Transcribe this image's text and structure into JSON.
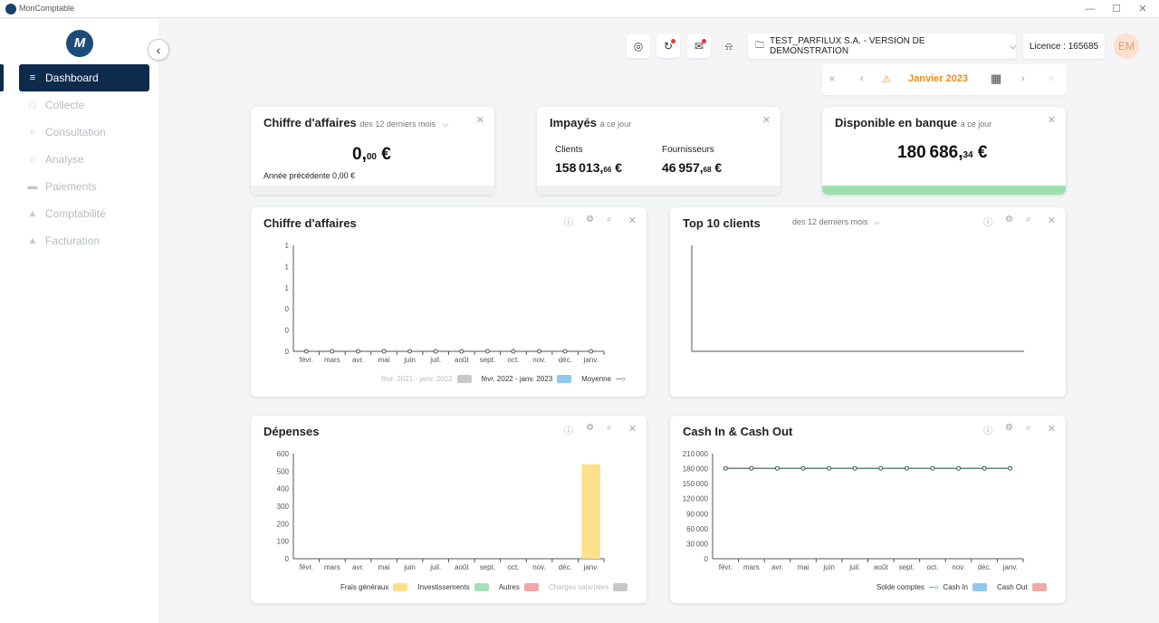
{
  "window": {
    "title": "MonComptable",
    "controls": [
      "—",
      "☐",
      "✕"
    ]
  },
  "sidebar": {
    "logo": "M",
    "collapse_icon": "‹",
    "items": [
      {
        "label": "Dashboard",
        "icon": "chart-icon",
        "glyph": "≡",
        "active": true
      },
      {
        "label": "Collecte",
        "icon": "file-icon",
        "glyph": "□",
        "active": false
      },
      {
        "label": "Consultation",
        "icon": "search-icon",
        "glyph": "⌕",
        "active": false
      },
      {
        "label": "Analyse",
        "icon": "bulb-icon",
        "glyph": "☼",
        "active": false
      },
      {
        "label": "Paiements",
        "icon": "card-icon",
        "glyph": "▬",
        "active": false
      },
      {
        "label": "Comptabilité",
        "icon": "user-icon",
        "glyph": "▲",
        "active": false
      },
      {
        "label": "Facturation",
        "icon": "bag-icon",
        "glyph": "▲",
        "active": false
      }
    ]
  },
  "header": {
    "icons": [
      {
        "name": "target-icon",
        "glyph": "◎",
        "badge": false
      },
      {
        "name": "sync-icon",
        "glyph": "↻",
        "badge": true
      },
      {
        "name": "mail-icon",
        "glyph": "✉",
        "badge": true
      },
      {
        "name": "bell-icon",
        "glyph": "⍾",
        "badge": false
      }
    ],
    "company": "TEST_PARFILUX S.A. - VERSION DE DEMONSTRATION",
    "licence": "Licence : 165685",
    "avatar": "EM"
  },
  "datebar": {
    "first": "«",
    "prev": "‹",
    "warning": "⚠",
    "period": "Janvier 2023",
    "calendar": "▦",
    "next": "›",
    "last": "»"
  },
  "cards": {
    "ca_summary": {
      "title": "Chiffre d'affaires",
      "subtitle": "des 12 derniers mois",
      "value_int": "0,",
      "value_dec": "00",
      "currency": " €",
      "prev_year": "Année précédente 0,00 €"
    },
    "impayes": {
      "title": "Impayés",
      "subtitle": "à ce jour",
      "clients_label": "Clients",
      "clients_int": "158 013,",
      "clients_dec": "66",
      "fourn_label": "Fournisseurs",
      "fourn_int": "46 957,",
      "fourn_dec": "68",
      "currency": " €"
    },
    "banque": {
      "title": "Disponible en banque",
      "subtitle": "à ce jour",
      "value_int": "180 686,",
      "value_dec": "34",
      "currency": " €"
    },
    "ca_chart": {
      "title": "Chiffre d'affaires"
    },
    "top10": {
      "title": "Top 10 clients",
      "subtitle": "des 12 derniers mois"
    },
    "depenses": {
      "title": "Dépenses"
    },
    "cashflow": {
      "title": "Cash In & Cash Out"
    }
  },
  "chart_data": [
    {
      "type": "line",
      "title": "Chiffre d'affaires",
      "categories": [
        "févr.",
        "mars",
        "avr.",
        "mai",
        "juin",
        "juil.",
        "août",
        "sept.",
        "oct.",
        "nov.",
        "déc.",
        "janv."
      ],
      "y_ticks": [
        "1",
        "1",
        "1",
        "0",
        "0",
        "0"
      ],
      "series": [
        {
          "name": "févr. 2021 - janv. 2022",
          "kind": "bar",
          "color": "#c8c8c8",
          "values": [
            0,
            0,
            0,
            0,
            0,
            0,
            0,
            0,
            0,
            0,
            0,
            0
          ]
        },
        {
          "name": "févr. 2022 - janv. 2023",
          "kind": "bar",
          "color": "#90c8f0",
          "values": [
            0,
            0,
            0,
            0,
            0,
            0,
            0,
            0,
            0,
            0,
            0,
            0
          ]
        },
        {
          "name": "Moyenne",
          "kind": "line",
          "color": "#555555",
          "values": [
            0,
            0,
            0,
            0,
            0,
            0,
            0,
            0,
            0,
            0,
            0,
            0
          ]
        }
      ]
    },
    {
      "type": "bar",
      "title": "Dépenses",
      "categories": [
        "févr.",
        "mars",
        "avr.",
        "mai",
        "juin",
        "juil.",
        "août",
        "sept.",
        "oct.",
        "nov.",
        "déc.",
        "janv."
      ],
      "y_ticks": [
        "600",
        "500",
        "400",
        "300",
        "200",
        "100",
        "0"
      ],
      "ylim": [
        0,
        600
      ],
      "series": [
        {
          "name": "Frais généraux",
          "color": "#fde08a",
          "values": [
            0,
            0,
            0,
            0,
            0,
            0,
            0,
            0,
            0,
            0,
            0,
            540
          ]
        },
        {
          "name": "Investissements",
          "color": "#a6e0b8",
          "values": [
            0,
            0,
            0,
            0,
            0,
            0,
            0,
            0,
            0,
            0,
            0,
            0
          ]
        },
        {
          "name": "Autres",
          "color": "#f0a8a8",
          "values": [
            0,
            0,
            0,
            0,
            0,
            0,
            0,
            0,
            0,
            0,
            0,
            0
          ]
        },
        {
          "name": "Charges salariales",
          "color": "#c8c8c8",
          "values": [
            0,
            0,
            0,
            0,
            0,
            0,
            0,
            0,
            0,
            0,
            0,
            0
          ]
        }
      ]
    },
    {
      "type": "line",
      "title": "Cash In & Cash Out",
      "categories": [
        "févr.",
        "mars",
        "avr.",
        "mai",
        "juin",
        "juil.",
        "août",
        "sept.",
        "oct.",
        "nov.",
        "déc.",
        "janv."
      ],
      "y_ticks": [
        "210 000",
        "180 000",
        "150 000",
        "120 000",
        "90 000",
        "60 000",
        "30 000",
        "0"
      ],
      "ylim": [
        0,
        210000
      ],
      "series": [
        {
          "name": "Solde comptes",
          "kind": "line",
          "color": "#2e5e4e",
          "values": [
            180686,
            180686,
            180686,
            180686,
            180686,
            180686,
            180686,
            180686,
            180686,
            180686,
            180686,
            180686
          ]
        },
        {
          "name": "Cash In",
          "kind": "bar",
          "color": "#90c8f0",
          "values": [
            0,
            0,
            0,
            0,
            0,
            0,
            0,
            0,
            0,
            0,
            0,
            0
          ]
        },
        {
          "name": "Cash Out",
          "kind": "bar",
          "color": "#f0a8a8",
          "values": [
            0,
            0,
            0,
            0,
            0,
            0,
            0,
            0,
            0,
            0,
            0,
            0
          ]
        }
      ]
    }
  ]
}
